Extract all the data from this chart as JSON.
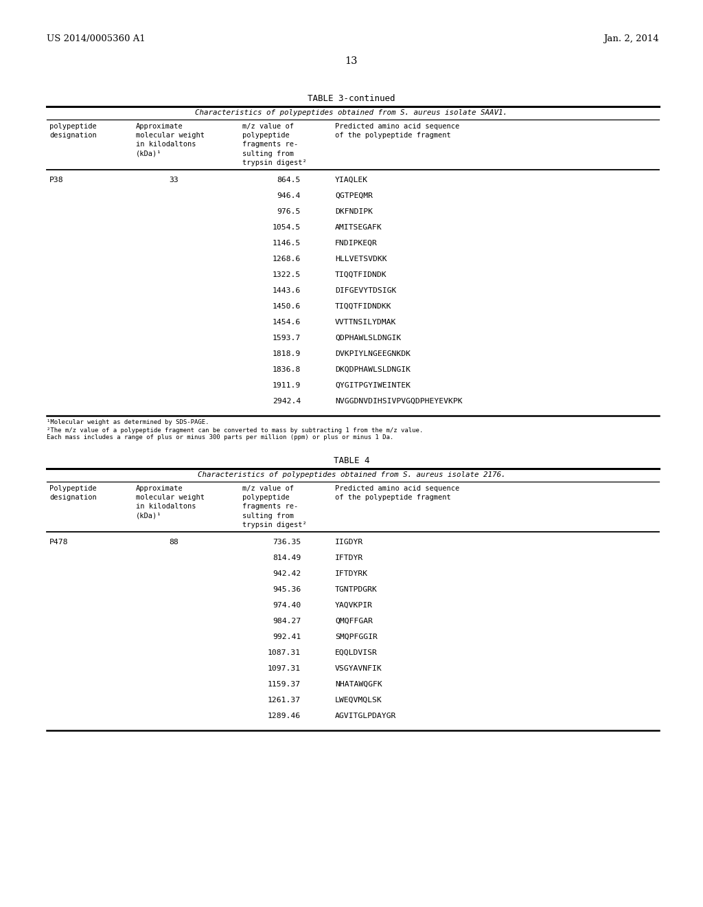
{
  "page_number": "13",
  "left_header": "US 2014/0005360 A1",
  "right_header": "Jan. 2, 2014",
  "background_color": "#ffffff",
  "table3_title": "TABLE 3-continued",
  "table3_subtitle": "Characteristics of polypeptides obtained from S. aureus isolate SAAV1.",
  "table3_col1_header": "polypeptide\ndesignation",
  "table3_col2_header": "Approximate\nmolecular weight\nin kilodaltons\n(kDa)¹",
  "table3_col3_header": "m/z value of\npolypeptide\nfragments re-\nsulting from\ntrypsin digest²",
  "table3_col4_header": "Predicted amino acid sequence\nof the polypeptide fragment",
  "table3_data": [
    [
      "P38",
      "33",
      "864.5",
      "YIAQLEK"
    ],
    [
      "",
      "",
      "946.4",
      "QGTPEQMR"
    ],
    [
      "",
      "",
      "976.5",
      "DKFNDIPK"
    ],
    [
      "",
      "",
      "1054.5",
      "AMITSEGAFK"
    ],
    [
      "",
      "",
      "1146.5",
      "FNDIPKEQR"
    ],
    [
      "",
      "",
      "1268.6",
      "HLLVETSVDKK"
    ],
    [
      "",
      "",
      "1322.5",
      "TIQQTFIDNDK"
    ],
    [
      "",
      "",
      "1443.6",
      "DIFGEVYTDSIGK"
    ],
    [
      "",
      "",
      "1450.6",
      "TIQQTFIDNDKK"
    ],
    [
      "",
      "",
      "1454.6",
      "VVTTNSILYDMAK"
    ],
    [
      "",
      "",
      "1593.7",
      "QDPHAWLSLDNGIK"
    ],
    [
      "",
      "",
      "1818.9",
      "DVKPIYLNGEEGNKDK"
    ],
    [
      "",
      "",
      "1836.8",
      "DKQDPHAWLSLDNGIK"
    ],
    [
      "",
      "",
      "1911.9",
      "QYGITPGYIWEINTEK"
    ],
    [
      "",
      "",
      "2942.4",
      "NVGGDNVDIHSIVPVGQDPHEYEVKPK"
    ]
  ],
  "table3_footnote1": "¹Molecular weight as determined by SDS-PAGE.",
  "table3_footnote2": "²The m/z value of a polypeptide fragment can be converted to mass by subtracting 1 from the m/z value.\nEach mass includes a range of plus or minus 300 parts per million (ppm) or plus or minus 1 Da.",
  "table4_title": "TABLE 4",
  "table4_subtitle": "Characteristics of polypeptides obtained from S. aureus isolate 2176.",
  "table4_col1_header": "Polypeptide\ndesignation",
  "table4_col2_header": "Approximate\nmolecular weight\nin kilodaltons\n(kDa)¹",
  "table4_col3_header": "m/z value of\npolypeptide\nfragments re-\nsulting from\ntrypsin digest²",
  "table4_col4_header": "Predicted amino acid sequence\nof the polypeptide fragment",
  "table4_data": [
    [
      "P478",
      "88",
      "736.35",
      "IIGDYR"
    ],
    [
      "",
      "",
      "814.49",
      "IFTDYR"
    ],
    [
      "",
      "",
      "942.42",
      "IFTDYRK"
    ],
    [
      "",
      "",
      "945.36",
      "TGNTPDGRK"
    ],
    [
      "",
      "",
      "974.40",
      "YAQVKPIR"
    ],
    [
      "",
      "",
      "984.27",
      "QMQFFGAR"
    ],
    [
      "",
      "",
      "992.41",
      "SMQPFGGIR"
    ],
    [
      "",
      "",
      "1087.31",
      "EQQLDVISR"
    ],
    [
      "",
      "",
      "1097.31",
      "VSGYAVNFIK"
    ],
    [
      "",
      "",
      "1159.37",
      "NHATAWQGFK"
    ],
    [
      "",
      "",
      "1261.37",
      "LWEQVMQLSK"
    ],
    [
      "",
      "",
      "1289.46",
      "AGVITGLPDAYGR"
    ]
  ]
}
